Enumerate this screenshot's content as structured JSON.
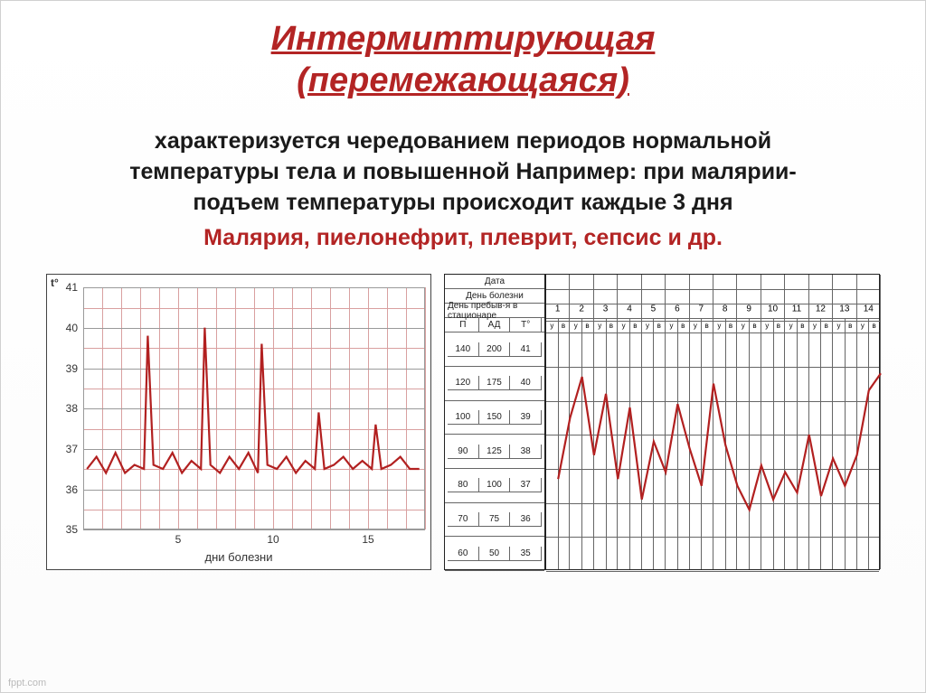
{
  "title_line1": "Интермиттирующая",
  "title_line2": "(перемежающаяся)",
  "body_black": "характеризуется чередованием периодов нормальной температуры тела и повышенной Например: при малярии- подъем температуры происходит каждые 3 дня",
  "body_red": "Малярия, пиелонефрит, плеврит, сепсис и др.",
  "watermark": "fppt.com",
  "chart_left": {
    "t_corner": "t°",
    "ymin": 35,
    "ymax": 41,
    "y_major": [
      35,
      36,
      37,
      38,
      39,
      40,
      41
    ],
    "x_major_ticks": [
      5,
      10,
      15
    ],
    "xmin": 0,
    "xmax": 18,
    "x_minor_step": 1,
    "y_minor_step": 0.5,
    "x_title": "дни болезни",
    "line_color": "#b22020",
    "grid_major_color": "#9a9a9a",
    "grid_minor_color": "#d9a0a0",
    "points": [
      [
        0.2,
        36.5
      ],
      [
        0.7,
        36.8
      ],
      [
        1.2,
        36.4
      ],
      [
        1.7,
        36.9
      ],
      [
        2.2,
        36.4
      ],
      [
        2.7,
        36.6
      ],
      [
        3.2,
        36.5
      ],
      [
        3.4,
        39.8
      ],
      [
        3.7,
        36.6
      ],
      [
        4.2,
        36.5
      ],
      [
        4.7,
        36.9
      ],
      [
        5.2,
        36.4
      ],
      [
        5.7,
        36.7
      ],
      [
        6.2,
        36.5
      ],
      [
        6.4,
        40.0
      ],
      [
        6.7,
        36.6
      ],
      [
        7.2,
        36.4
      ],
      [
        7.7,
        36.8
      ],
      [
        8.2,
        36.5
      ],
      [
        8.7,
        36.9
      ],
      [
        9.2,
        36.4
      ],
      [
        9.4,
        39.6
      ],
      [
        9.7,
        36.6
      ],
      [
        10.2,
        36.5
      ],
      [
        10.7,
        36.8
      ],
      [
        11.2,
        36.4
      ],
      [
        11.7,
        36.7
      ],
      [
        12.2,
        36.5
      ],
      [
        12.4,
        37.9
      ],
      [
        12.7,
        36.5
      ],
      [
        13.2,
        36.6
      ],
      [
        13.7,
        36.8
      ],
      [
        14.2,
        36.5
      ],
      [
        14.7,
        36.7
      ],
      [
        15.2,
        36.5
      ],
      [
        15.4,
        37.6
      ],
      [
        15.7,
        36.5
      ],
      [
        16.2,
        36.6
      ],
      [
        16.7,
        36.8
      ],
      [
        17.2,
        36.5
      ],
      [
        17.7,
        36.5
      ]
    ]
  },
  "chart_right": {
    "header_rows": [
      "Дата",
      "День болезни",
      "День пребыв-я в стационаре"
    ],
    "col_headers": [
      "П",
      "АД",
      "Т°"
    ],
    "p_values": [
      "140",
      "120",
      "100",
      "90",
      "80",
      "70",
      "60"
    ],
    "ad_values": [
      "200",
      "175",
      "150",
      "125",
      "100",
      "75",
      "50"
    ],
    "t_values": [
      "41",
      "40",
      "39",
      "38",
      "37",
      "36",
      "35"
    ],
    "days": [
      "1",
      "2",
      "3",
      "4",
      "5",
      "6",
      "7",
      "8",
      "9",
      "10",
      "11",
      "12",
      "13",
      "14"
    ],
    "uv_pair": [
      "у",
      "в"
    ],
    "ymin": 35,
    "ymax": 41.5,
    "line_color": "#b22020",
    "points": [
      [
        0.5,
        37.2
      ],
      [
        1.0,
        39.0
      ],
      [
        1.5,
        40.2
      ],
      [
        2.0,
        37.9
      ],
      [
        2.5,
        39.7
      ],
      [
        3.0,
        37.2
      ],
      [
        3.5,
        39.3
      ],
      [
        4.0,
        36.6
      ],
      [
        4.5,
        38.3
      ],
      [
        5.0,
        37.4
      ],
      [
        5.5,
        39.4
      ],
      [
        6.0,
        38.1
      ],
      [
        6.5,
        37.0
      ],
      [
        7.0,
        40.0
      ],
      [
        7.5,
        38.2
      ],
      [
        8.0,
        37.0
      ],
      [
        8.5,
        36.3
      ],
      [
        9.0,
        37.6
      ],
      [
        9.5,
        36.6
      ],
      [
        10.0,
        37.4
      ],
      [
        10.5,
        36.8
      ],
      [
        11.0,
        38.5
      ],
      [
        11.5,
        36.7
      ],
      [
        12.0,
        37.8
      ],
      [
        12.5,
        37.0
      ],
      [
        13.0,
        37.9
      ],
      [
        13.5,
        39.8
      ],
      [
        14.0,
        40.3
      ]
    ]
  }
}
